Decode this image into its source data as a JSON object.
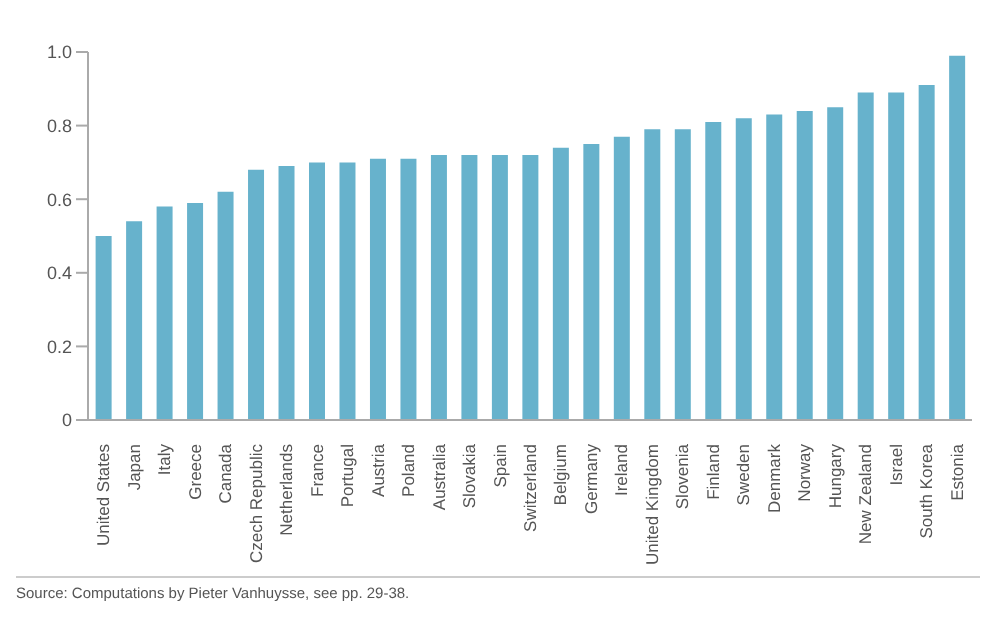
{
  "chart_data": {
    "type": "bar",
    "categories": [
      "United States",
      "Japan",
      "Italy",
      "Greece",
      "Canada",
      "Czech Republic",
      "Netherlands",
      "France",
      "Portugal",
      "Austria",
      "Poland",
      "Australia",
      "Slovakia",
      "Spain",
      "Switzerland",
      "Belgium",
      "Germany",
      "Ireland",
      "United Kingdom",
      "Slovenia",
      "Finland",
      "Sweden",
      "Denmark",
      "Norway",
      "Hungary",
      "New Zealand",
      "Israel",
      "South Korea",
      "Estonia"
    ],
    "values": [
      0.5,
      0.54,
      0.58,
      0.59,
      0.62,
      0.68,
      0.69,
      0.7,
      0.7,
      0.71,
      0.71,
      0.72,
      0.72,
      0.72,
      0.72,
      0.74,
      0.75,
      0.77,
      0.79,
      0.79,
      0.81,
      0.82,
      0.83,
      0.84,
      0.85,
      0.89,
      0.89,
      0.91,
      0.99
    ],
    "color": "#67b2cc",
    "ylim": [
      0,
      1
    ],
    "yticks": [
      0,
      {
        "value": 0.2,
        "label": "0.2"
      },
      {
        "value": 0.4,
        "label": "0.4"
      },
      {
        "value": 0.6,
        "label": "0.6"
      },
      {
        "value": 0.8,
        "label": "0.8"
      },
      {
        "value": 1,
        "label": "1.0"
      }
    ],
    "grid": false,
    "annotations": [
      "Source: Computations by Pieter Vanhuysse, see pp. 29-38."
    ]
  }
}
